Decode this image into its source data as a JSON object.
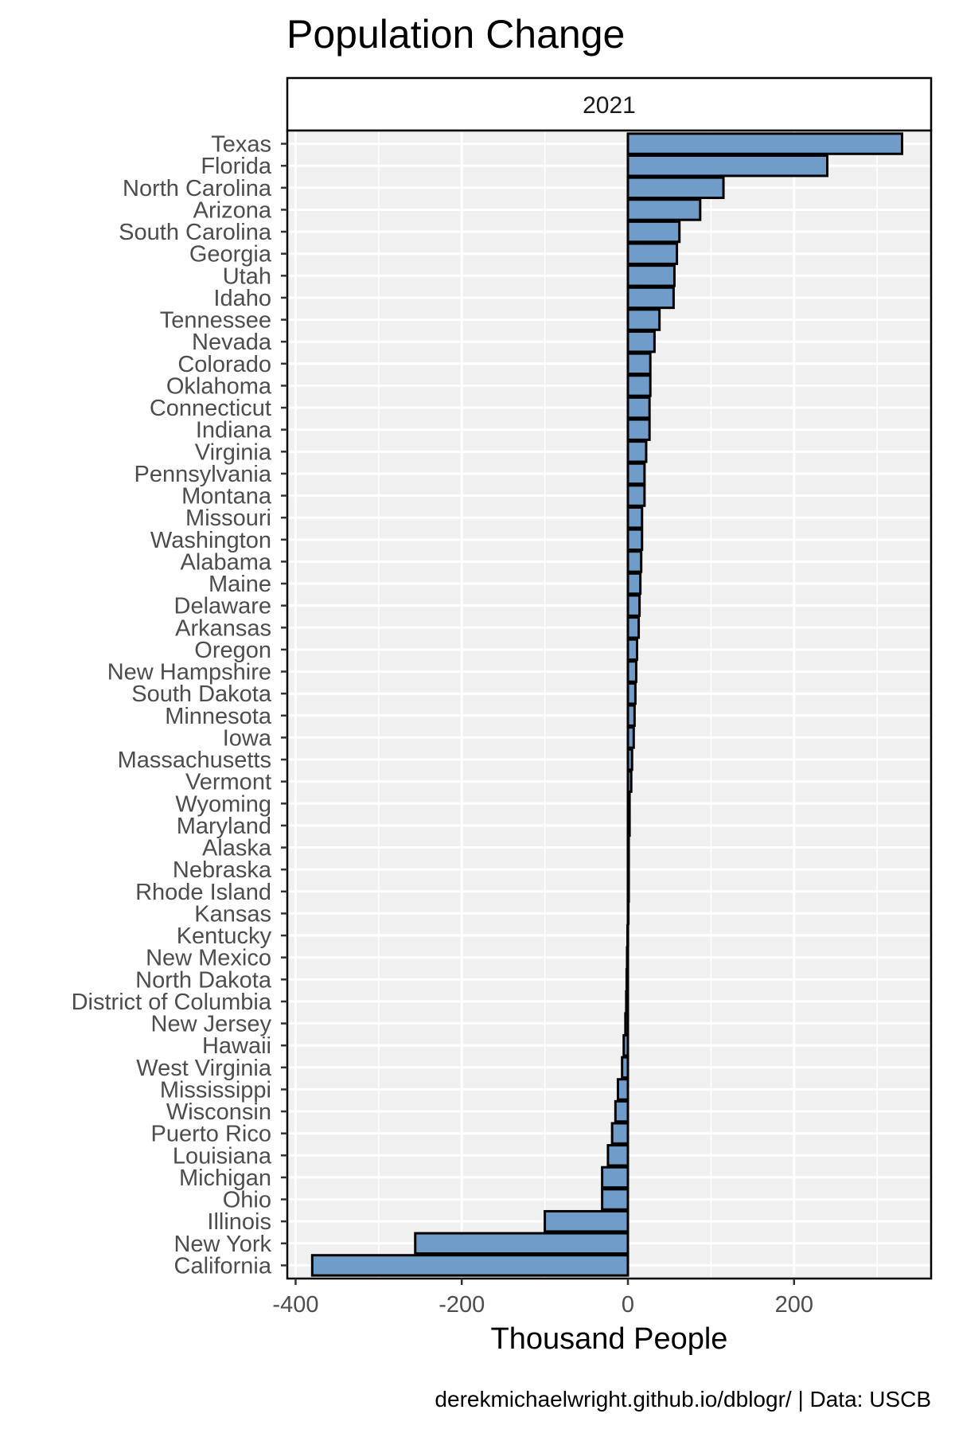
{
  "chart_data": {
    "type": "bar",
    "orientation": "horizontal",
    "title": "Population Change",
    "facet_label": "2021",
    "xlabel": "Thousand People",
    "ylabel": "",
    "caption": "derekmichaelwright.github.io/dblogr/ | Data: USCB",
    "xlim": [
      -410,
      365
    ],
    "xticks": [
      -400,
      -200,
      0,
      200
    ],
    "xtick_labels": [
      "-400",
      "-200",
      "0",
      "200"
    ],
    "grid": true,
    "bar_color": "#6f9cc8",
    "categories": [
      "Texas",
      "Florida",
      "North Carolina",
      "Arizona",
      "South Carolina",
      "Georgia",
      "Utah",
      "Idaho",
      "Tennessee",
      "Nevada",
      "Colorado",
      "Oklahoma",
      "Connecticut",
      "Indiana",
      "Virginia",
      "Pennsylvania",
      "Montana",
      "Missouri",
      "Washington",
      "Alabama",
      "Maine",
      "Delaware",
      "Arkansas",
      "Oregon",
      "New Hampshire",
      "South Dakota",
      "Minnesota",
      "Iowa",
      "Massachusetts",
      "Vermont",
      "Wyoming",
      "Maryland",
      "Alaska",
      "Nebraska",
      "Rhode Island",
      "Kansas",
      "Kentucky",
      "New Mexico",
      "North Dakota",
      "District of Columbia",
      "New Jersey",
      "Hawaii",
      "West Virginia",
      "Mississippi",
      "Wisconsin",
      "Puerto Rico",
      "Louisiana",
      "Michigan",
      "Ohio",
      "Illinois",
      "New York",
      "California"
    ],
    "values": [
      330,
      240,
      115,
      87,
      62,
      59,
      56,
      55,
      38,
      32,
      27,
      27,
      26,
      26,
      22,
      20,
      20,
      17,
      17,
      16,
      15,
      14,
      13,
      11,
      10,
      9,
      8,
      7,
      5,
      4,
      2,
      2,
      1,
      1,
      1,
      0.5,
      -0.5,
      -1,
      -1.5,
      -2,
      -3,
      -5,
      -7,
      -12,
      -15,
      -19,
      -24,
      -31,
      -31,
      -100,
      -256,
      -380
    ]
  }
}
